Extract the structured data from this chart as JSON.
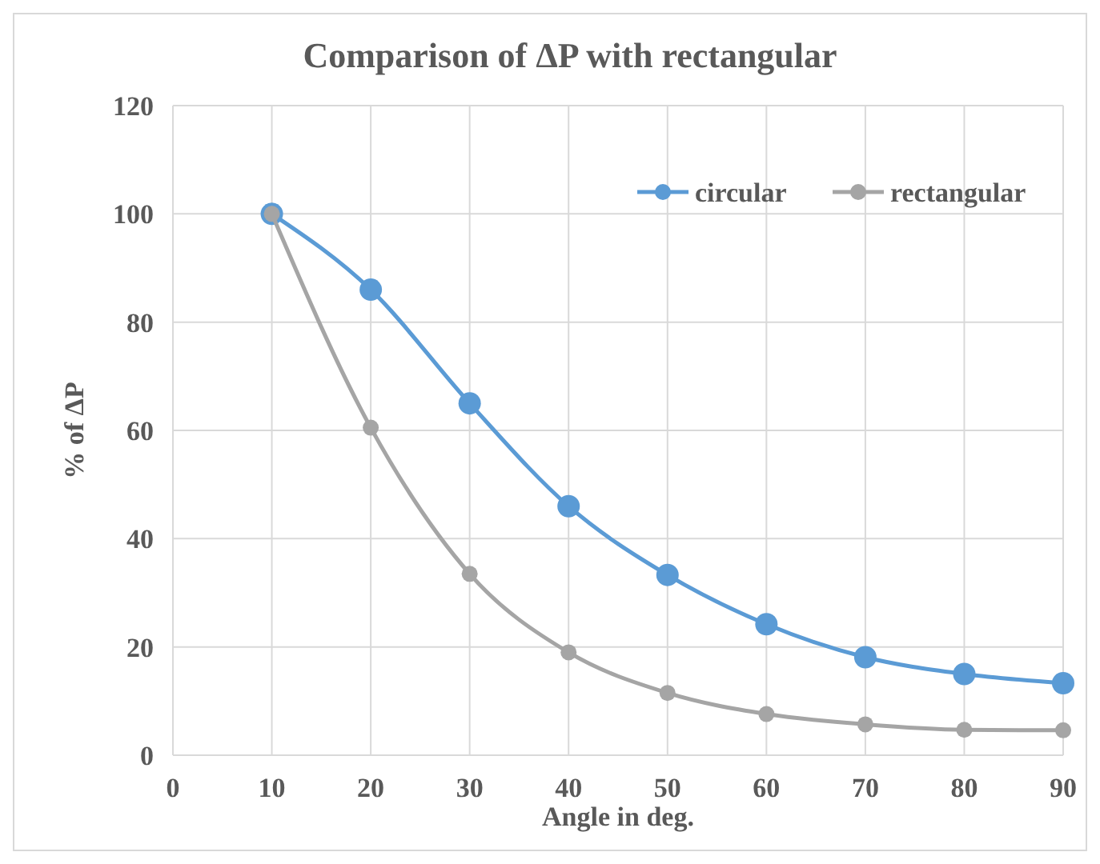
{
  "chart_data": {
    "type": "line",
    "title": "Comparison of ΔP with rectangular",
    "xlabel": "Angle in deg.",
    "ylabel": "% of ΔP",
    "x": [
      10,
      20,
      30,
      40,
      50,
      60,
      70,
      80,
      90
    ],
    "series": [
      {
        "name": "circular",
        "color": "#5b9bd5",
        "values": [
          100,
          86,
          65,
          46,
          33.3,
          24.2,
          18.1,
          15,
          13.3
        ]
      },
      {
        "name": "rectangular",
        "color": "#a5a5a5",
        "values": [
          100,
          60.5,
          33.5,
          19,
          11.5,
          7.6,
          5.7,
          4.7,
          4.6
        ]
      }
    ],
    "xlim": [
      0,
      90
    ],
    "xticks": [
      0,
      10,
      20,
      30,
      40,
      50,
      60,
      70,
      80,
      90
    ],
    "ylim": [
      0,
      120
    ],
    "yticks": [
      0,
      20,
      40,
      60,
      80,
      100,
      120
    ],
    "grid": true,
    "legend": "top right",
    "marker": "circle",
    "line_style": "solid"
  }
}
